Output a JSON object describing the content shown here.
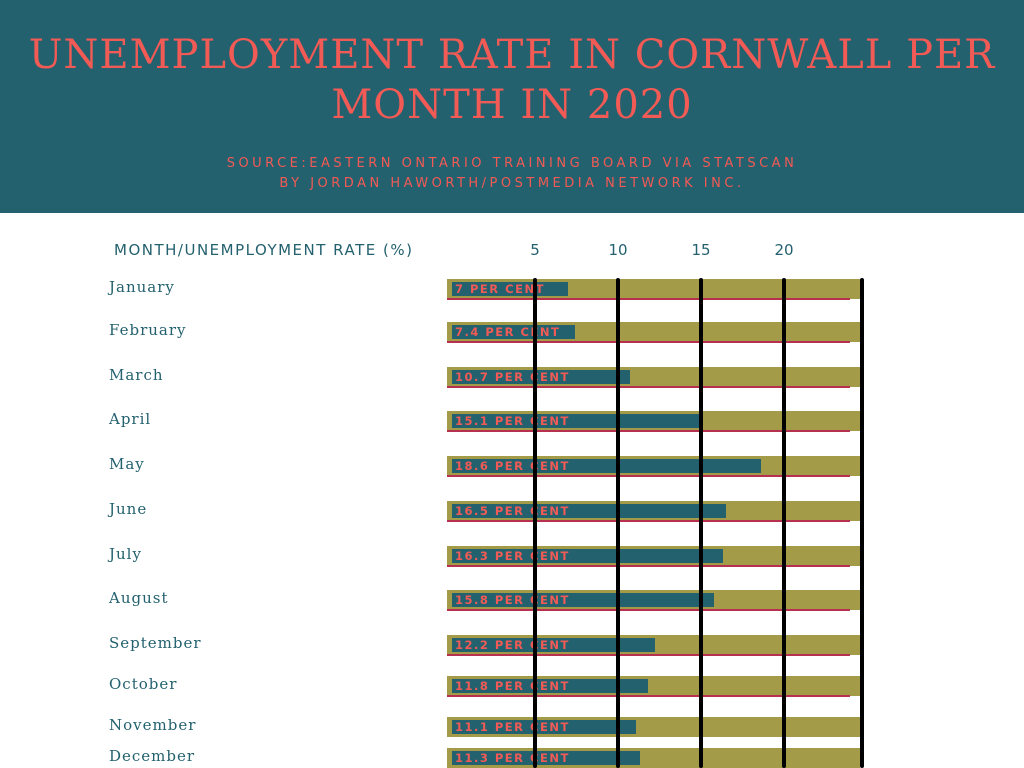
{
  "header": {
    "title": "Unemployment rate in Cornwall per month in 2020",
    "source_line1": "Source:Eastern Ontario Training Board via StatsCan",
    "source_line2": "By Jordan Haworth/Postmedia Network Inc."
  },
  "colors": {
    "header_bg": "#23616e",
    "title": "#f25a55",
    "track": "#a39b48",
    "bar": "#23616e",
    "underline": "#b8304f"
  },
  "chart_data": {
    "type": "bar",
    "orientation": "horizontal",
    "title": "Unemployment rate in Cornwall per month in 2020",
    "xlabel": "Month/Unemployment rate (%)",
    "x_ticks": [
      5,
      10,
      15,
      20
    ],
    "categories": [
      "January",
      "February",
      "March",
      "April",
      "May",
      "June",
      "July",
      "August",
      "September",
      "October",
      "November",
      "December"
    ],
    "values": [
      7,
      7.4,
      10.7,
      15.1,
      18.6,
      16.5,
      16.3,
      15.8,
      12.2,
      11.8,
      11.1,
      11.3
    ],
    "labels": [
      "7 per cent",
      "7.4 per cent",
      "10.7 per cent",
      "15.1 per cent",
      "18.6 per cent",
      "16.5 per cent",
      "16.3 per cent",
      "15.8 per cent",
      "12.2 per cent",
      "11.8 per cent",
      "11.1 per cent",
      "11.3 per cent"
    ],
    "grid": true
  }
}
